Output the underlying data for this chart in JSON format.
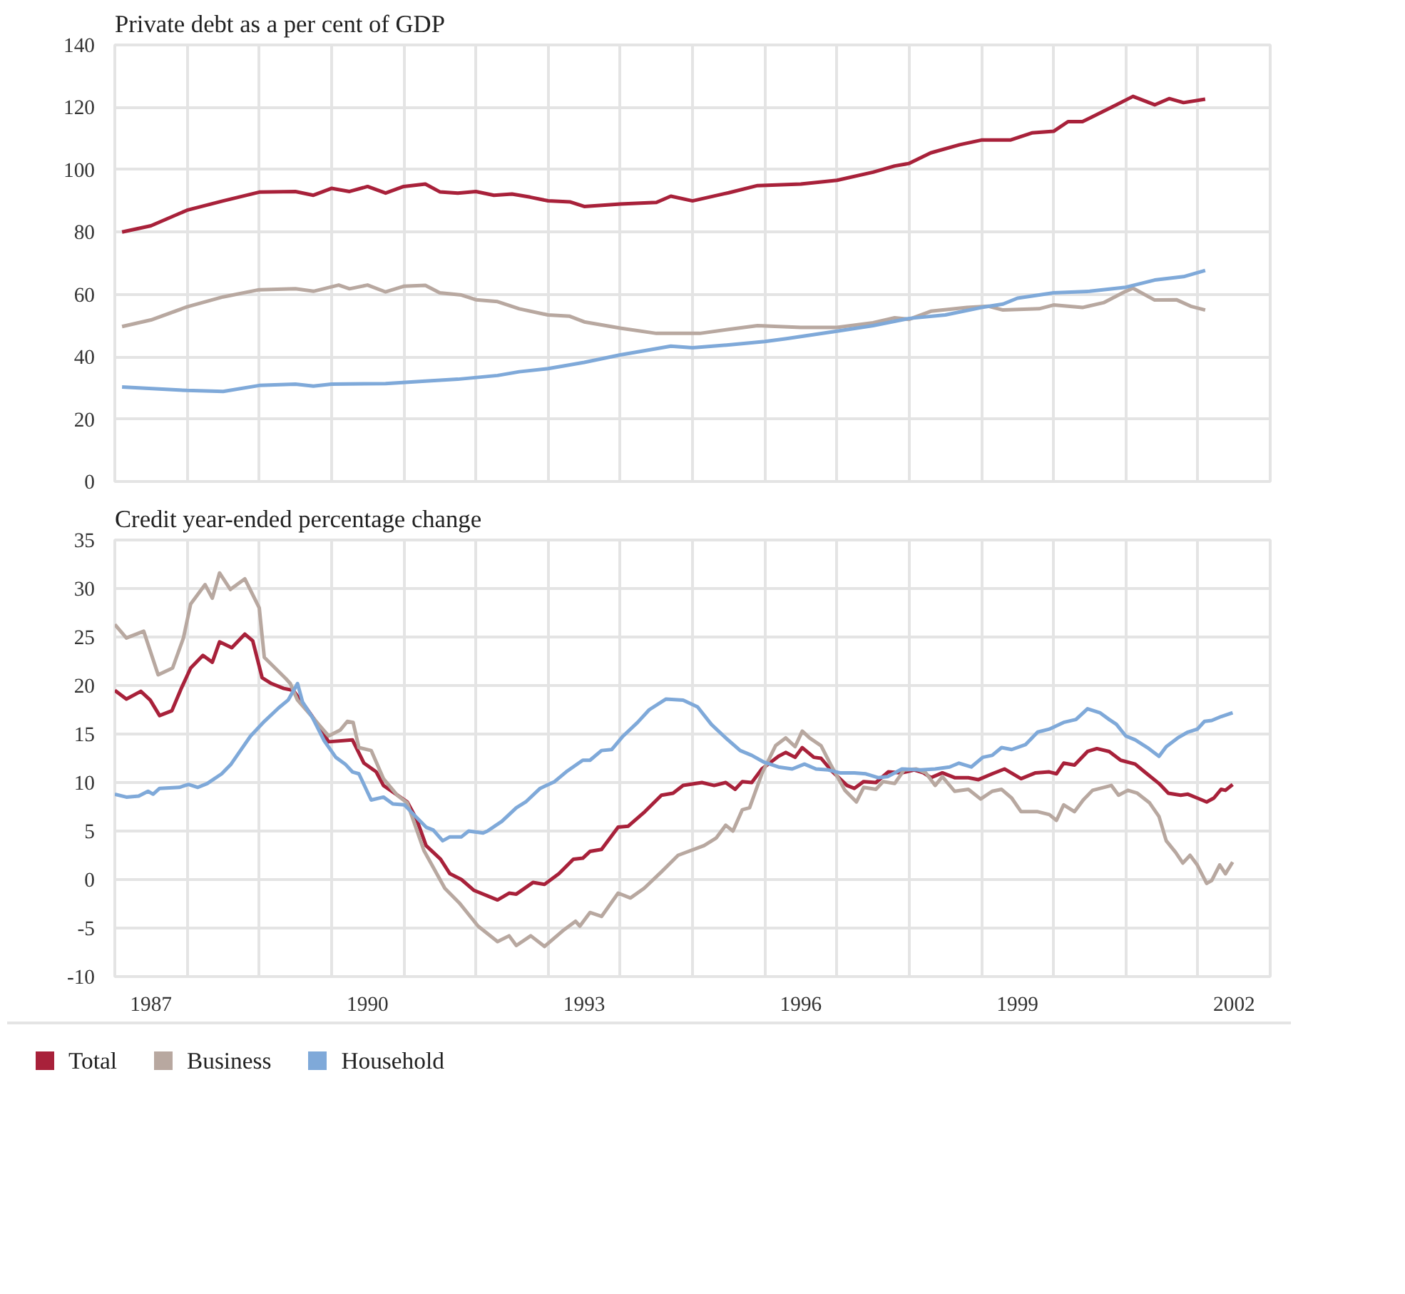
{
  "chart_data": [
    {
      "type": "line",
      "title": "Private debt as a per cent of GDP",
      "xlim": [
        1987,
        2003
      ],
      "ylim": [
        0,
        140
      ],
      "yticks": [
        0,
        20,
        40,
        60,
        80,
        100,
        120,
        140
      ],
      "xticks": [
        {
          "value": 1988,
          "label": null
        },
        {
          "value": 1989,
          "label": null
        },
        {
          "value": 1990,
          "label": null
        },
        {
          "value": 1991,
          "label": null
        },
        {
          "value": 1992,
          "label": null
        },
        {
          "value": 1993,
          "label": null
        },
        {
          "value": 1994,
          "label": null
        },
        {
          "value": 1995,
          "label": null
        },
        {
          "value": 1996,
          "label": null
        },
        {
          "value": 1997,
          "label": null
        },
        {
          "value": 1998,
          "label": null
        },
        {
          "value": 1999,
          "label": null
        },
        {
          "value": 2000,
          "label": null
        },
        {
          "value": 2001,
          "label": null
        },
        {
          "value": 2002,
          "label": null
        }
      ],
      "tick_labels": "y",
      "grid": true,
      "marker": "none",
      "line_style": "solid",
      "series": [
        {
          "color": "#a8213a",
          "x": [
            1987.1,
            1987.5,
            1988,
            1988.5,
            1989,
            1989.5,
            1989.75,
            1990,
            1990.25,
            1990.5,
            1990.75,
            1991,
            1991.3,
            1991.5,
            1991.75,
            1992,
            1992.25,
            1992.5,
            1992.75,
            1993,
            1993.3,
            1993.5,
            1994,
            1994.5,
            1994.7,
            1995,
            1995.5,
            1995.9,
            1996.5,
            1997,
            1997.5,
            1997.8,
            1998,
            1998.3,
            1998.7,
            1999,
            1999.4,
            1999.7,
            2000,
            2000.2,
            2000.4,
            2000.8,
            2001.1,
            2001.4,
            2001.6,
            2001.8,
            2002.1
          ],
          "values": [
            80,
            82,
            87,
            90,
            92.8,
            93,
            91.8,
            94,
            93,
            94.6,
            92.5,
            94.6,
            95.4,
            92.9,
            92.5,
            93,
            91.8,
            92.2,
            91.2,
            90,
            89.7,
            88.2,
            89,
            89.5,
            91.5,
            90,
            92.6,
            94.9,
            95.4,
            96.6,
            99.2,
            101.2,
            102,
            105.4,
            108,
            109.5,
            109.5,
            111.8,
            112.3,
            115.4,
            115.4,
            120,
            123.5,
            120.8,
            122.8,
            121.5,
            122.6
          ]
        },
        {
          "color": "#b8a8a0",
          "x": [
            1987.1,
            1987.5,
            1988,
            1988.5,
            1989,
            1989.5,
            1989.75,
            1990.1,
            1990.25,
            1990.5,
            1990.75,
            1991,
            1991.3,
            1991.5,
            1991.8,
            1992,
            1992.3,
            1992.6,
            1993,
            1993.3,
            1993.5,
            1994,
            1994.5,
            1994.8,
            1995.1,
            1995.5,
            1995.9,
            1996.5,
            1997,
            1997.5,
            1997.8,
            1998,
            1998.3,
            1998.8,
            1999.1,
            1999.3,
            1999.8,
            2000,
            2000.4,
            2000.7,
            2001,
            2001.1,
            2001.4,
            2001.7,
            2001.9,
            2002.1
          ],
          "values": [
            49.7,
            51.8,
            56,
            59.2,
            61.5,
            61.8,
            61,
            63,
            61.8,
            63,
            60.8,
            62.6,
            62.9,
            60.5,
            59.8,
            58.3,
            57.7,
            55.4,
            53.4,
            53,
            51.2,
            49.2,
            47.5,
            47.5,
            47.5,
            48.8,
            50,
            49.4,
            49.4,
            50.9,
            52.5,
            52,
            54.6,
            55.8,
            56.2,
            55,
            55.4,
            56.6,
            55.8,
            57.4,
            61,
            62,
            58.2,
            58.3,
            56.2,
            55
          ]
        },
        {
          "color": "#7fa9d9",
          "x": [
            1987.1,
            1988,
            1988.5,
            1989,
            1989.5,
            1989.75,
            1990,
            1990.75,
            1991.3,
            1991.75,
            1992.3,
            1992.6,
            1993,
            1993.5,
            1994,
            1994.7,
            1995,
            1995.5,
            1996,
            1996.3,
            1997,
            1997.5,
            1998,
            1998.5,
            1999,
            1999.3,
            1999.5,
            2000,
            2000.5,
            2001,
            2001.4,
            2001.8,
            2002.1
          ],
          "values": [
            30.3,
            29.2,
            28.9,
            30.8,
            31.2,
            30.6,
            31.2,
            31.4,
            32.2,
            32.8,
            34,
            35.2,
            36.2,
            38.2,
            40.6,
            43.4,
            42.9,
            43.8,
            44.9,
            45.8,
            48.2,
            50,
            52.3,
            53.4,
            55.8,
            56.9,
            58.8,
            60.5,
            61,
            62.3,
            64.6,
            65.7,
            67.7
          ]
        }
      ]
    },
    {
      "type": "line",
      "title": "Credit year-ended percentage change",
      "xlim": [
        1987,
        2003
      ],
      "ylim": [
        -10,
        35
      ],
      "yticks": [
        -10,
        -5,
        0,
        5,
        10,
        15,
        20,
        25,
        30,
        35
      ],
      "xticks": [
        {
          "value": 1987.5,
          "label": "1987"
        },
        {
          "value": 1990.5,
          "label": "1990"
        },
        {
          "value": 1993.5,
          "label": "1993"
        },
        {
          "value": 1996.5,
          "label": "1996"
        },
        {
          "value": 1999.5,
          "label": "1999"
        },
        {
          "value": 2002.5,
          "label": "2002"
        },
        {
          "value": 1988,
          "label": null
        },
        {
          "value": 1989,
          "label": null
        },
        {
          "value": 1990,
          "label": null
        },
        {
          "value": 1991,
          "label": null
        },
        {
          "value": 1992,
          "label": null
        },
        {
          "value": 1993,
          "label": null
        },
        {
          "value": 1994,
          "label": null
        },
        {
          "value": 1995,
          "label": null
        },
        {
          "value": 1996,
          "label": null
        },
        {
          "value": 1997,
          "label": null
        },
        {
          "value": 1998,
          "label": null
        },
        {
          "value": 1999,
          "label": null
        },
        {
          "value": 2000,
          "label": null
        },
        {
          "value": 2001,
          "label": null
        },
        {
          "value": 2002,
          "label": null
        }
      ],
      "grid": true,
      "legend": "bottom",
      "marker": "none",
      "line_style": "solid",
      "series": [
        {
          "name": "Total",
          "color": "#a8213a",
          "x": [
            1987.0,
            1987.16,
            1987.36,
            1987.49,
            1987.62,
            1987.79,
            1987.92,
            1988.05,
            1988.22,
            1988.35,
            1988.45,
            1988.62,
            1988.8,
            1988.91,
            1989.04,
            1989.17,
            1989.34,
            1989.47,
            1989.66,
            1989.83,
            1989.96,
            1990.29,
            1990.45,
            1990.62,
            1990.72,
            1991.05,
            1991.18,
            1991.31,
            1991.51,
            1991.64,
            1991.8,
            1991.97,
            1992.3,
            1992.46,
            1992.56,
            1992.79,
            1992.95,
            1993.15,
            1993.35,
            1993.48,
            1993.58,
            1993.74,
            1993.97,
            1994.11,
            1994.34,
            1994.57,
            1994.73,
            1994.87,
            1995.13,
            1995.3,
            1995.46,
            1995.59,
            1995.69,
            1995.82,
            1995.96,
            1996.19,
            1996.29,
            1996.42,
            1996.52,
            1996.68,
            1996.78,
            1996.94,
            1997.14,
            1997.24,
            1997.37,
            1997.54,
            1997.71,
            1997.9,
            1998.07,
            1998.2,
            1998.3,
            1998.46,
            1998.63,
            1998.82,
            1998.96,
            1999.15,
            1999.32,
            1999.55,
            1999.75,
            1999.94,
            2000.04,
            2000.14,
            2000.29,
            2000.47,
            2000.6,
            2000.77,
            2000.93,
            2001.13,
            2001.26,
            2001.46,
            2001.59,
            2001.76,
            2001.86,
            2001.99,
            2002.12,
            2002.22,
            2002.32,
            2002.38,
            2002.48
          ],
          "values": [
            19.5,
            18.6,
            19.4,
            18.5,
            16.9,
            17.4,
            19.7,
            21.8,
            23.1,
            22.4,
            24.5,
            23.9,
            25.3,
            24.6,
            20.8,
            20.2,
            19.7,
            19.5,
            17.6,
            15.8,
            14.2,
            14.4,
            12,
            11.1,
            9.7,
            8,
            6.2,
            3.5,
            2.1,
            0.6,
            0,
            -1.1,
            -2.1,
            -1.4,
            -1.5,
            -0.3,
            -0.5,
            0.6,
            2.1,
            2.2,
            2.9,
            3.1,
            5.4,
            5.5,
            7,
            8.7,
            8.9,
            9.7,
            10,
            9.7,
            10,
            9.3,
            10.1,
            10,
            11.4,
            12.7,
            13.1,
            12.6,
            13.6,
            12.6,
            12.5,
            11.1,
            9.7,
            9.4,
            10.1,
            10,
            11.1,
            11,
            11.3,
            11,
            10.5,
            11,
            10.5,
            10.5,
            10.3,
            10.9,
            11.4,
            10.4,
            11,
            11.1,
            10.9,
            12,
            11.8,
            13.2,
            13.5,
            13.2,
            12.3,
            11.9,
            11.1,
            9.9,
            8.9,
            8.7,
            8.8,
            8.4,
            8,
            8.4,
            9.3,
            9.2,
            9.8
          ]
        },
        {
          "name": "Business",
          "color": "#b8a8a0",
          "x": [
            1987.0,
            1987.16,
            1987.4,
            1987.6,
            1987.8,
            1987.95,
            1988.05,
            1988.25,
            1988.35,
            1988.45,
            1988.6,
            1988.8,
            1989.0,
            1989.07,
            1989.37,
            1989.43,
            1989.53,
            1989.73,
            1989.96,
            1990.12,
            1990.22,
            1990.3,
            1990.38,
            1990.55,
            1990.72,
            1990.91,
            1991.05,
            1991.28,
            1991.57,
            1991.77,
            1992.03,
            1992.3,
            1992.46,
            1992.56,
            1992.76,
            1992.95,
            1993.2,
            1993.38,
            1993.44,
            1993.58,
            1993.74,
            1993.97,
            1994.14,
            1994.33,
            1994.57,
            1994.8,
            1995.16,
            1995.33,
            1995.46,
            1995.56,
            1995.69,
            1995.79,
            1995.96,
            1996.15,
            1996.29,
            1996.42,
            1996.52,
            1996.62,
            1996.78,
            1996.91,
            1997.11,
            1997.27,
            1997.37,
            1997.54,
            1997.64,
            1997.8,
            1997.93,
            1998.1,
            1998.23,
            1998.36,
            1998.46,
            1998.63,
            1998.82,
            1998.99,
            1999.15,
            1999.28,
            1999.42,
            1999.55,
            1999.78,
            1999.94,
            2000.04,
            2000.14,
            2000.29,
            2000.41,
            2000.54,
            2000.8,
            2000.9,
            2001.03,
            2001.16,
            2001.33,
            2001.46,
            2001.56,
            2001.69,
            2001.79,
            2001.89,
            2001.99,
            2002.12,
            2002.19,
            2002.3,
            2002.38,
            2002.48
          ],
          "values": [
            26.3,
            24.9,
            25.6,
            21.1,
            21.8,
            24.9,
            28.4,
            30.4,
            29,
            31.6,
            29.9,
            31,
            28,
            22.9,
            20.7,
            20.2,
            18.5,
            16.8,
            14.8,
            15.4,
            16.3,
            16.2,
            13.6,
            13.3,
            10.4,
            8.7,
            7.9,
            3,
            -0.9,
            -2.4,
            -4.8,
            -6.4,
            -5.8,
            -6.8,
            -5.8,
            -6.9,
            -5.3,
            -4.3,
            -4.8,
            -3.4,
            -3.8,
            -1.4,
            -1.9,
            -0.9,
            0.8,
            2.5,
            3.5,
            4.3,
            5.6,
            5,
            7.2,
            7.4,
            10.9,
            13.8,
            14.6,
            13.7,
            15.3,
            14.6,
            13.8,
            11.9,
            9.2,
            8,
            9.5,
            9.3,
            10.1,
            9.9,
            11.3,
            11.4,
            11,
            9.7,
            10.6,
            9.1,
            9.3,
            8.3,
            9.1,
            9.3,
            8.4,
            7,
            7,
            6.7,
            6.1,
            7.7,
            7,
            8.2,
            9.2,
            9.7,
            8.7,
            9.2,
            8.9,
            7.9,
            6.5,
            4,
            2.8,
            1.7,
            2.5,
            1.5,
            -0.4,
            -0.1,
            1.5,
            0.6,
            1.8
          ]
        },
        {
          "name": "Household",
          "color": "#7fa9d9",
          "x": [
            1987.0,
            1987.16,
            1987.33,
            1987.46,
            1987.53,
            1987.62,
            1987.89,
            1988.02,
            1988.15,
            1988.28,
            1988.48,
            1988.61,
            1988.74,
            1988.88,
            1989.07,
            1989.27,
            1989.4,
            1989.53,
            1989.6,
            1989.73,
            1989.9,
            1990.06,
            1990.19,
            1990.29,
            1990.38,
            1990.55,
            1990.72,
            1990.85,
            1991.01,
            1991.14,
            1991.31,
            1991.41,
            1991.54,
            1991.64,
            1991.8,
            1991.9,
            1992.1,
            1992.16,
            1992.36,
            1992.56,
            1992.69,
            1992.89,
            1993.09,
            1993.25,
            1993.48,
            1993.58,
            1993.74,
            1993.88,
            1994.04,
            1994.24,
            1994.4,
            1994.63,
            1994.87,
            1995.07,
            1995.26,
            1995.46,
            1995.66,
            1995.82,
            1995.99,
            1996.19,
            1996.38,
            1996.55,
            1996.71,
            1996.88,
            1997.04,
            1997.24,
            1997.4,
            1997.57,
            1997.7,
            1997.9,
            1998.16,
            1998.36,
            1998.56,
            1998.69,
            1998.86,
            1999.02,
            1999.15,
            1999.28,
            1999.42,
            1999.61,
            1999.78,
            1999.94,
            2000.14,
            2000.31,
            2000.47,
            2000.64,
            2000.77,
            2000.87,
            2001.0,
            2001.13,
            2001.3,
            2001.46,
            2001.56,
            2001.72,
            2001.86,
            2001.99,
            2002.09,
            2002.19,
            2002.32,
            2002.48
          ],
          "values": [
            8.8,
            8.5,
            8.6,
            9.1,
            8.8,
            9.4,
            9.5,
            9.8,
            9.5,
            9.9,
            10.9,
            11.9,
            13.3,
            14.8,
            16.3,
            17.7,
            18.5,
            20.2,
            18.3,
            16.8,
            14.3,
            12.6,
            11.9,
            11.1,
            10.9,
            8.2,
            8.5,
            7.8,
            7.7,
            6.7,
            5.4,
            5.1,
            4,
            4.4,
            4.4,
            5,
            4.8,
            5,
            6,
            7.4,
            8,
            9.4,
            10.1,
            11.1,
            12.3,
            12.3,
            13.3,
            13.4,
            14.8,
            16.2,
            17.5,
            18.6,
            18.5,
            17.8,
            16,
            14.6,
            13.3,
            12.8,
            12.1,
            11.6,
            11.4,
            11.9,
            11.4,
            11.3,
            11,
            11,
            10.9,
            10.5,
            10.6,
            11.4,
            11.3,
            11.4,
            11.6,
            12,
            11.6,
            12.6,
            12.8,
            13.6,
            13.4,
            13.9,
            15.2,
            15.5,
            16.2,
            16.5,
            17.6,
            17.2,
            16.5,
            16,
            14.8,
            14.4,
            13.6,
            12.7,
            13.7,
            14.6,
            15.2,
            15.5,
            16.3,
            16.4,
            16.8,
            17.2
          ]
        }
      ]
    }
  ]
}
